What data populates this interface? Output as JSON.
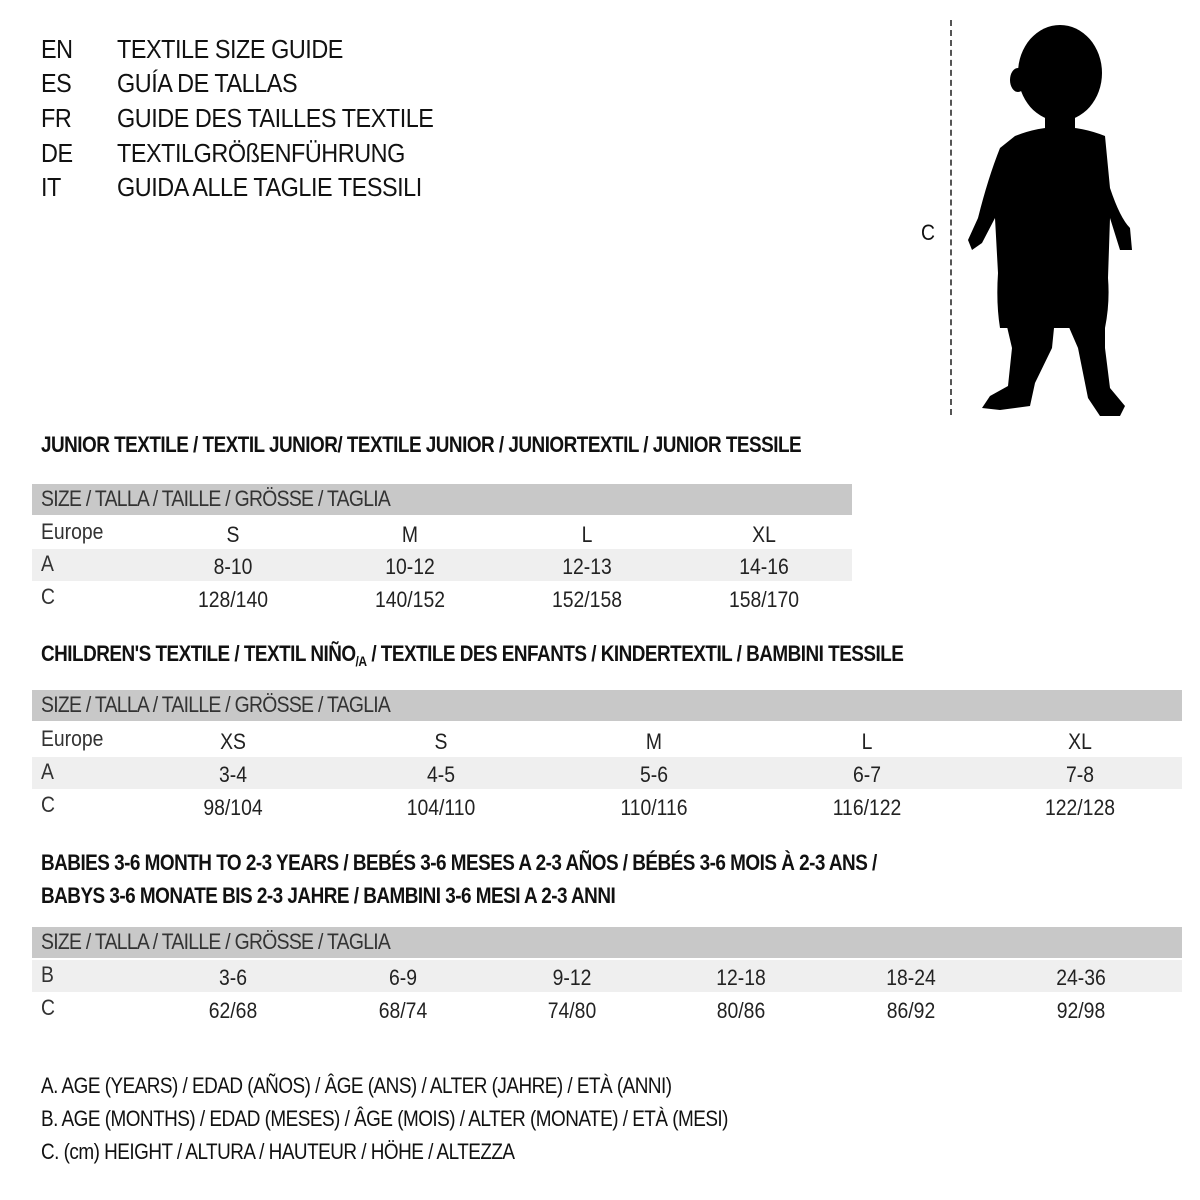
{
  "titles": [
    {
      "code": "EN",
      "text": "TEXTILE SIZE GUIDE"
    },
    {
      "code": "ES",
      "text": "GUÍA DE TALLAS"
    },
    {
      "code": "FR",
      "text": "GUIDE DES TAILLES TEXTILE"
    },
    {
      "code": "DE",
      "text": "TEXTILGRÖßENFÜHRUNG"
    },
    {
      "code": "IT",
      "text": "GUIDA ALLE TAGLIE TESSILI"
    }
  ],
  "figure": {
    "measure_label": "C",
    "icon": "child-silhouette-icon"
  },
  "colors": {
    "header_bar": "#c8c8c8",
    "shaded_row": "#efefef"
  },
  "sections": [
    {
      "title": "JUNIOR TEXTILE / TEXTIL JUNIOR/ TEXTILE JUNIOR / JUNIORTEXTIL / JUNIOR TESSILE",
      "header": "SIZE / TALLA / TAILLE / GRÖSSE / TAGLIA",
      "rows": [
        {
          "label": "Europe",
          "cells": [
            "S",
            "M",
            "L",
            "XL"
          ]
        },
        {
          "label": "A",
          "cells": [
            "8-10",
            "10-12",
            "12-13",
            "14-16"
          ]
        },
        {
          "label": "C",
          "cells": [
            "128/140",
            "140/152",
            "152/158",
            "158/170"
          ]
        }
      ]
    },
    {
      "title_pre": "CHILDREN'S TEXTILE / TEXTIL NIÑO",
      "title_sub": "/A",
      "title_post": " / TEXTILE DES ENFANTS / KINDERTEXTIL / BAMBINI TESSILE",
      "header": "SIZE / TALLA / TAILLE / GRÖSSE / TAGLIA",
      "rows": [
        {
          "label": "Europe",
          "cells": [
            "XS",
            "S",
            "M",
            "L",
            "XL"
          ]
        },
        {
          "label": "A",
          "cells": [
            "3-4",
            "4-5",
            "5-6",
            "6-7",
            "7-8"
          ]
        },
        {
          "label": "C",
          "cells": [
            "98/104",
            "104/110",
            "110/116",
            "116/122",
            "122/128"
          ]
        }
      ]
    },
    {
      "title_line1": "BABIES 3-6 MONTH TO 2-3 YEARS / BEBÉS 3-6 MESES A 2-3 AÑOS / BÉBÉS 3-6 MOIS À 2-3 ANS /",
      "title_line2": "BABYS 3-6 MONATE BIS 2-3 JAHRE / BAMBINI 3-6 MESI A 2-3 ANNI",
      "header": "SIZE / TALLA / TAILLE / GRÖSSE / TAGLIA",
      "rows": [
        {
          "label": "B",
          "cells": [
            "3-6",
            "6-9",
            "9-12",
            "12-18",
            "18-24",
            "24-36"
          ]
        },
        {
          "label": "C",
          "cells": [
            "62/68",
            "68/74",
            "74/80",
            "80/86",
            "86/92",
            "92/98"
          ]
        }
      ]
    }
  ],
  "legend": [
    "A. AGE (YEARS) / EDAD (AÑOS) / ÂGE (ANS) / ALTER (JAHRE) / ETÀ (ANNI)",
    "B. AGE (MONTHS) / EDAD (MESES) / ÂGE (MOIS) / ALTER (MONATE) / ETÀ (MESI)",
    "C. (cm) HEIGHT / ALTURA / HAUTEUR / HÖHE / ALTEZZA"
  ]
}
